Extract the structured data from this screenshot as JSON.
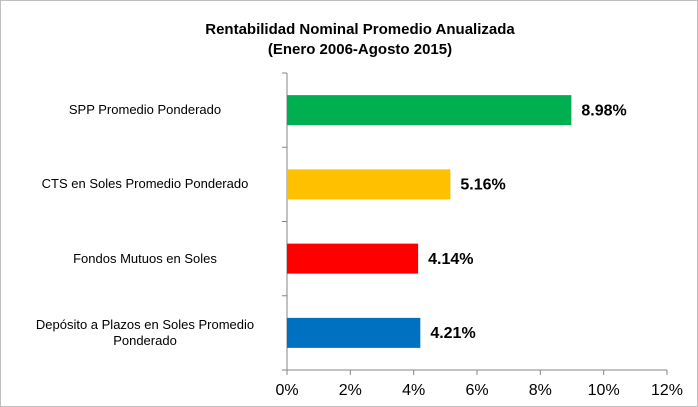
{
  "chart_data": {
    "type": "bar",
    "orientation": "horizontal",
    "title": "Rentabilidad Nominal Promedio Anualizada",
    "subtitle": "(Enero 2006-Agosto 2015)",
    "categories": [
      "SPP Promedio Ponderado",
      "CTS en Soles Promedio Ponderado",
      "Fondos Mutuos en Soles",
      "Depósito a Plazos en Soles Promedio Ponderado"
    ],
    "values": [
      8.98,
      5.16,
      4.14,
      4.21
    ],
    "value_labels": [
      "8.98%",
      "5.16%",
      "4.14%",
      "4.21%"
    ],
    "colors": [
      "#00b050",
      "#ffc000",
      "#ff0000",
      "#0070c0"
    ],
    "xlim": [
      0,
      12
    ],
    "xticks": [
      {
        "value": 0,
        "label": "0%"
      },
      {
        "value": 2,
        "label": "2%"
      },
      {
        "value": 4,
        "label": "4%"
      },
      {
        "value": 6,
        "label": "6%"
      },
      {
        "value": 8,
        "label": "8%"
      },
      {
        "value": 10,
        "label": "10%"
      },
      {
        "value": 12,
        "label": "12%"
      }
    ],
    "grid": false
  }
}
